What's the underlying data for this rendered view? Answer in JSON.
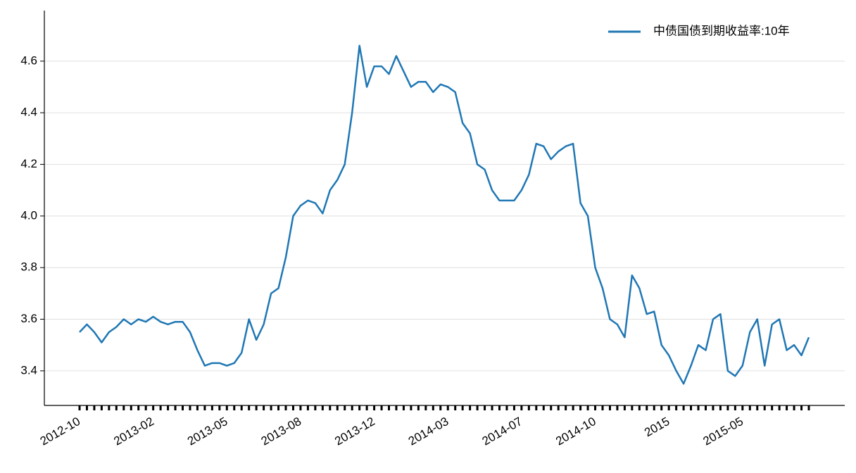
{
  "chart_data": {
    "type": "line",
    "categories": [
      "2012-10",
      null,
      null,
      null,
      null,
      null,
      null,
      null,
      null,
      null,
      "2013-02",
      null,
      null,
      null,
      null,
      null,
      null,
      null,
      null,
      null,
      "2013-05",
      null,
      null,
      null,
      null,
      null,
      null,
      null,
      null,
      null,
      "2013-08",
      null,
      null,
      null,
      null,
      null,
      null,
      null,
      null,
      null,
      "2013-12",
      null,
      null,
      null,
      null,
      null,
      null,
      null,
      null,
      null,
      "2014-03",
      null,
      null,
      null,
      null,
      null,
      null,
      null,
      null,
      null,
      "2014-07",
      null,
      null,
      null,
      null,
      null,
      null,
      null,
      null,
      null,
      "2014-10",
      null,
      null,
      null,
      null,
      null,
      null,
      null,
      null,
      null,
      "2015",
      null,
      null,
      null,
      null,
      null,
      null,
      null,
      null,
      null,
      "2015-05",
      null,
      null,
      null,
      null,
      null,
      null,
      null,
      null,
      null
    ],
    "series": [
      {
        "name": "中债国债到期收益率:10年",
        "color": "#1f77b4",
        "values": [
          3.55,
          3.58,
          3.55,
          3.51,
          3.55,
          3.57,
          3.6,
          3.58,
          3.6,
          3.59,
          3.61,
          3.59,
          3.58,
          3.59,
          3.59,
          3.55,
          3.48,
          3.42,
          3.43,
          3.43,
          3.42,
          3.43,
          3.47,
          3.6,
          3.52,
          3.58,
          3.7,
          3.72,
          3.84,
          4.0,
          4.04,
          4.06,
          4.05,
          4.01,
          4.1,
          4.14,
          4.2,
          4.4,
          4.66,
          4.5,
          4.58,
          4.58,
          4.55,
          4.62,
          4.56,
          4.5,
          4.52,
          4.52,
          4.48,
          4.51,
          4.5,
          4.48,
          4.36,
          4.32,
          4.2,
          4.18,
          4.1,
          4.06,
          4.06,
          4.06,
          4.1,
          4.16,
          4.28,
          4.27,
          4.22,
          4.25,
          4.27,
          4.28,
          4.05,
          4.0,
          3.8,
          3.72,
          3.6,
          3.58,
          3.53,
          3.77,
          3.72,
          3.62,
          3.63,
          3.5,
          3.46,
          3.4,
          3.35,
          3.42,
          3.5,
          3.48,
          3.6,
          3.62,
          3.4,
          3.38,
          3.42,
          3.55,
          3.6,
          3.42,
          3.58,
          3.6,
          3.48,
          3.5,
          3.46,
          3.53
        ]
      }
    ],
    "ylim": [
      3.266,
      4.796
    ],
    "yticks": [
      3.4,
      3.6,
      3.8,
      {
        "value": 4,
        "label": "4.0"
      },
      4.2,
      4.4,
      4.6
    ],
    "grid": true,
    "legend": "upper right"
  }
}
